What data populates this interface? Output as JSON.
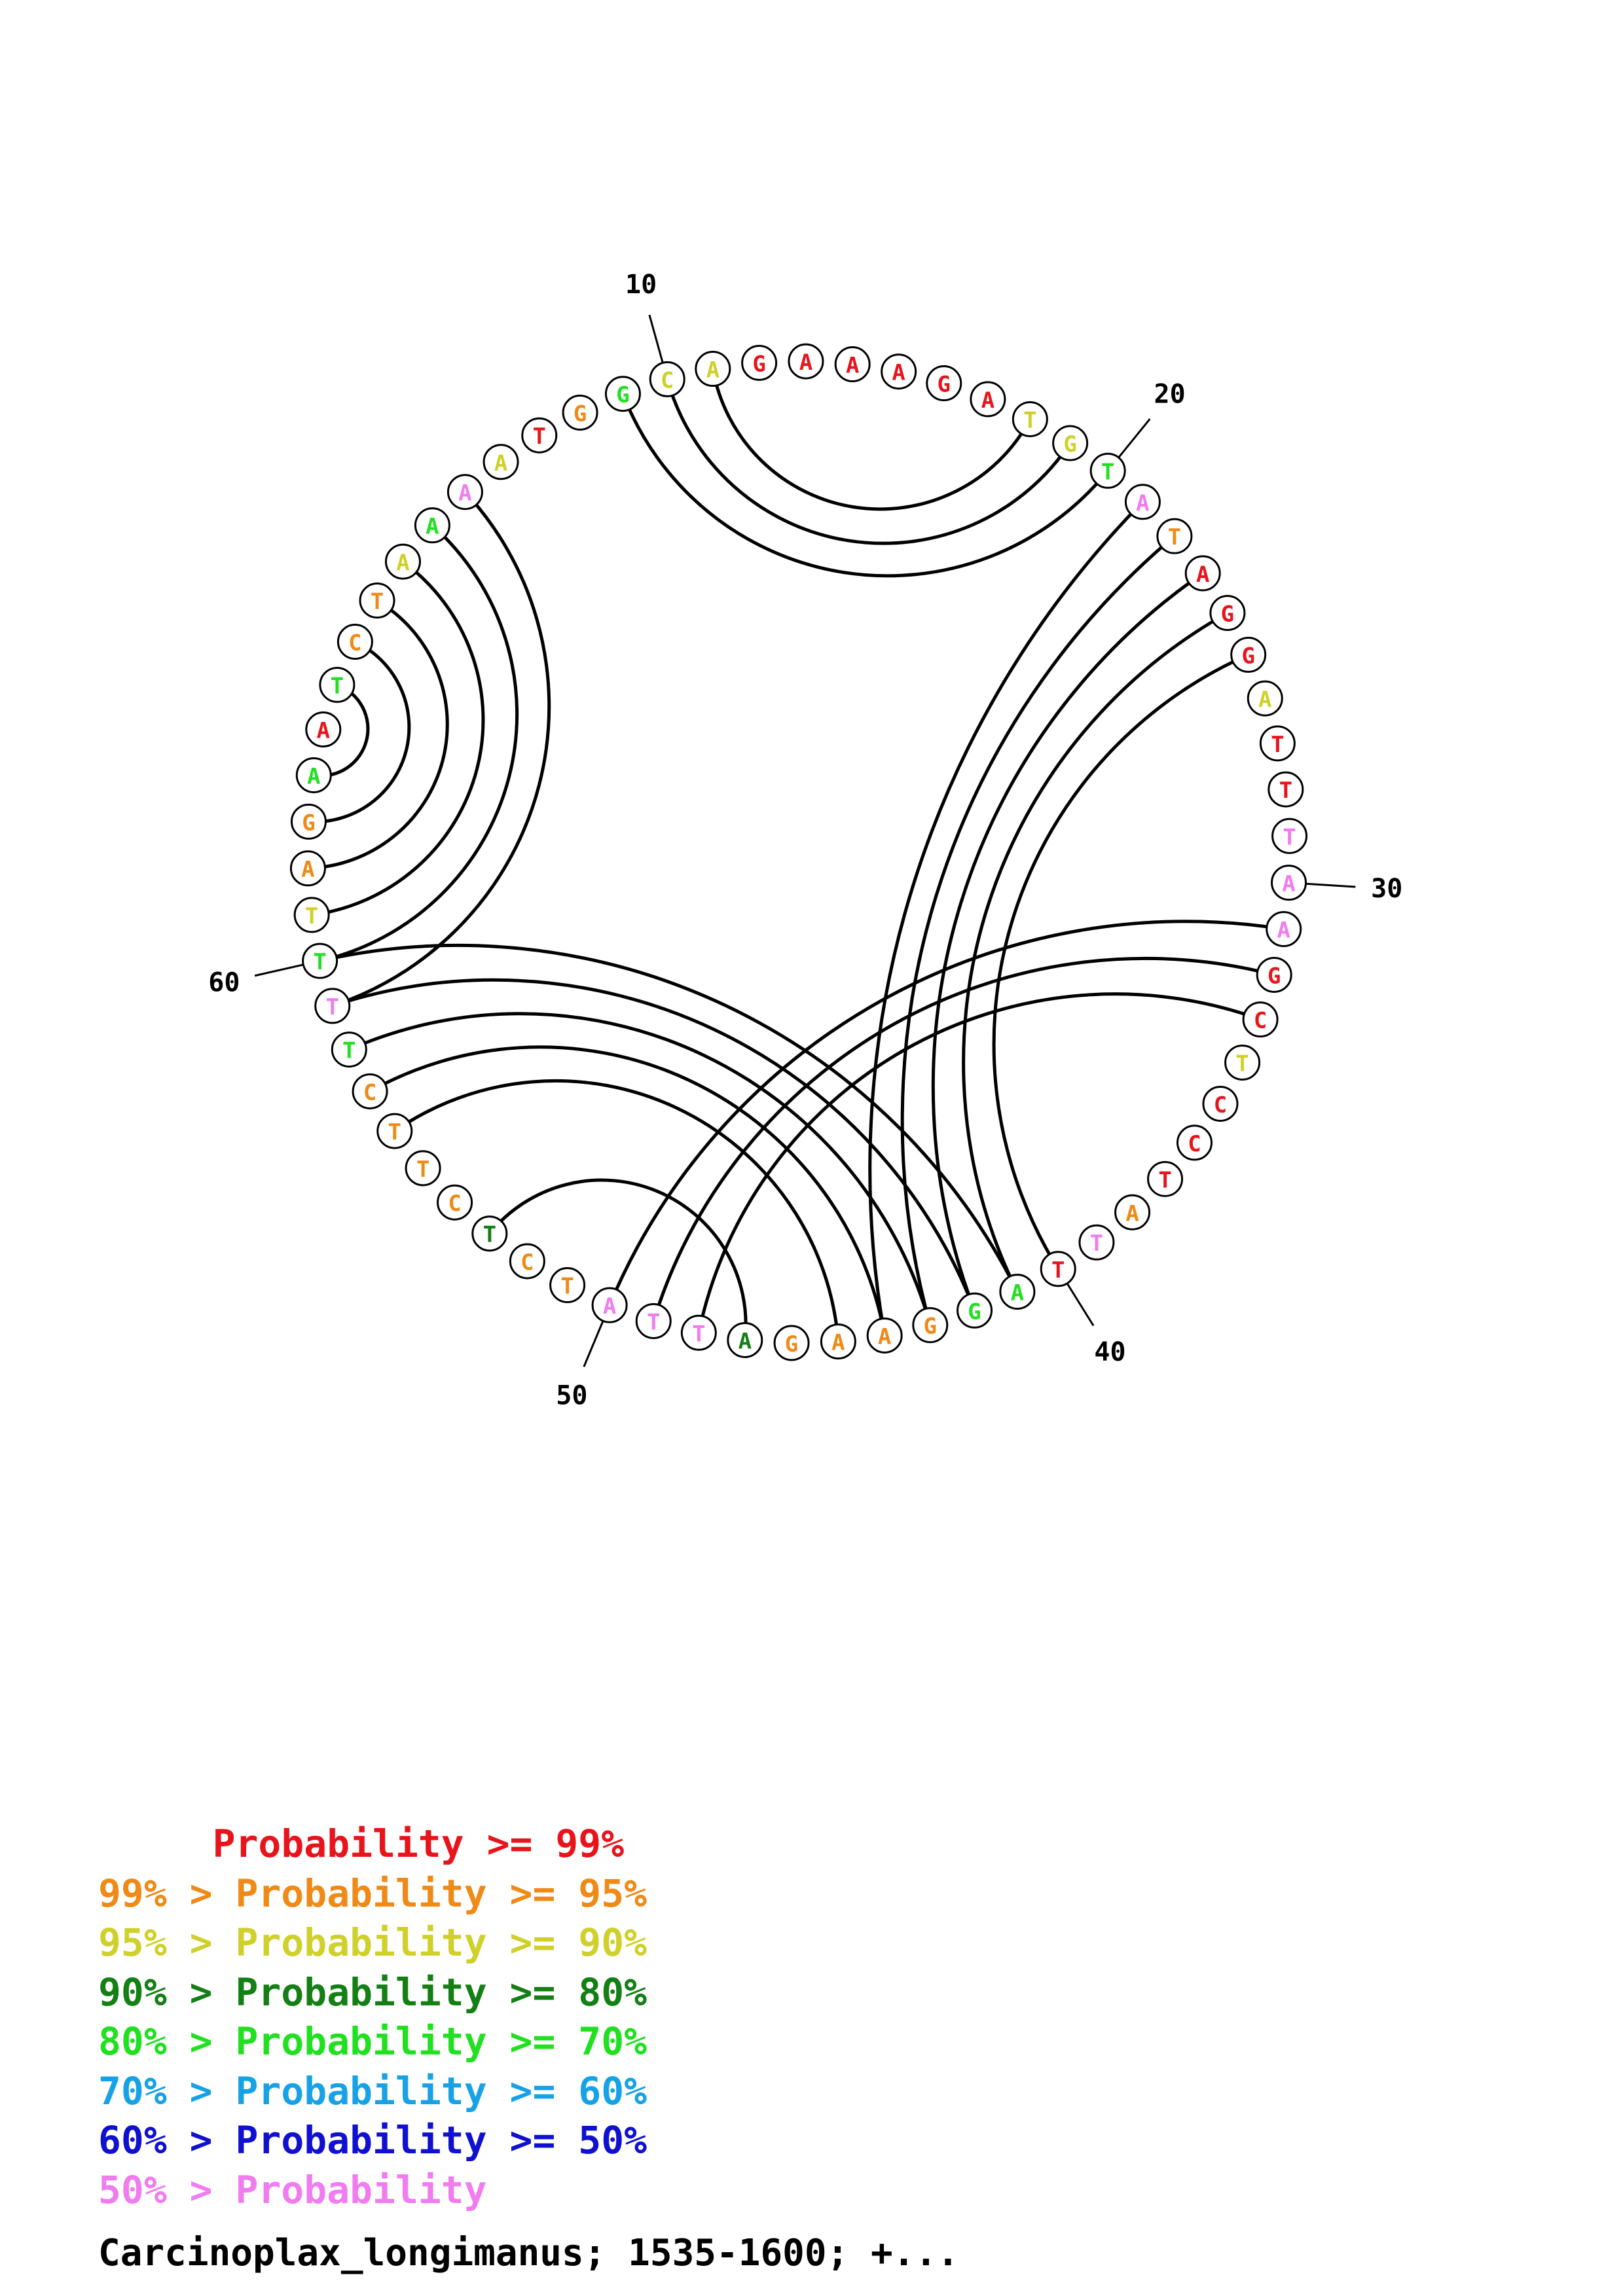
{
  "colors": {
    "red": "#e8141c",
    "orange": "#ef8a17",
    "yellow": "#cfd12a",
    "darkgreen": "#147f14",
    "green": "#20e020",
    "cyan": "#17a2e6",
    "blue": "#1010d0",
    "pink": "#f07cf0"
  },
  "sequence": [
    {
      "n": "A",
      "c": "pink"
    },
    {
      "n": "A",
      "c": "yellow"
    },
    {
      "n": "T",
      "c": "red"
    },
    {
      "n": "G",
      "c": "orange"
    },
    {
      "n": "G",
      "c": "green"
    },
    {
      "n": "C",
      "c": "yellow"
    },
    {
      "n": "A",
      "c": "yellow"
    },
    {
      "n": "G",
      "c": "red"
    },
    {
      "n": "A",
      "c": "red"
    },
    {
      "n": "A",
      "c": "red"
    },
    {
      "n": "A",
      "c": "red"
    },
    {
      "n": "G",
      "c": "red"
    },
    {
      "n": "A",
      "c": "red"
    },
    {
      "n": "T",
      "c": "yellow"
    },
    {
      "n": "G",
      "c": "yellow"
    },
    {
      "n": "T",
      "c": "green"
    },
    {
      "n": "A",
      "c": "pink"
    },
    {
      "n": "T",
      "c": "orange"
    },
    {
      "n": "A",
      "c": "red"
    },
    {
      "n": "G",
      "c": "red"
    },
    {
      "n": "G",
      "c": "red"
    },
    {
      "n": "A",
      "c": "yellow"
    },
    {
      "n": "T",
      "c": "red"
    },
    {
      "n": "T",
      "c": "red"
    },
    {
      "n": "T",
      "c": "pink"
    },
    {
      "n": "A",
      "c": "pink"
    },
    {
      "n": "A",
      "c": "pink"
    },
    {
      "n": "G",
      "c": "red"
    },
    {
      "n": "C",
      "c": "red"
    },
    {
      "n": "T",
      "c": "yellow"
    },
    {
      "n": "C",
      "c": "red"
    },
    {
      "n": "C",
      "c": "red"
    },
    {
      "n": "T",
      "c": "red"
    },
    {
      "n": "A",
      "c": "orange"
    },
    {
      "n": "T",
      "c": "pink"
    },
    {
      "n": "T",
      "c": "red"
    },
    {
      "n": "A",
      "c": "green"
    },
    {
      "n": "G",
      "c": "green"
    },
    {
      "n": "G",
      "c": "orange"
    },
    {
      "n": "A",
      "c": "orange"
    },
    {
      "n": "A",
      "c": "orange"
    },
    {
      "n": "G",
      "c": "orange"
    },
    {
      "n": "A",
      "c": "darkgreen"
    },
    {
      "n": "T",
      "c": "pink"
    },
    {
      "n": "T",
      "c": "pink"
    },
    {
      "n": "A",
      "c": "pink"
    },
    {
      "n": "T",
      "c": "orange"
    },
    {
      "n": "C",
      "c": "orange"
    },
    {
      "n": "T",
      "c": "darkgreen"
    },
    {
      "n": "C",
      "c": "orange"
    },
    {
      "n": "T",
      "c": "orange"
    },
    {
      "n": "T",
      "c": "orange"
    },
    {
      "n": "C",
      "c": "orange"
    },
    {
      "n": "T",
      "c": "green"
    },
    {
      "n": "T",
      "c": "pink"
    },
    {
      "n": "T",
      "c": "green"
    },
    {
      "n": "T",
      "c": "yellow"
    },
    {
      "n": "A",
      "c": "orange"
    },
    {
      "n": "G",
      "c": "orange"
    },
    {
      "n": "A",
      "c": "green"
    },
    {
      "n": "A",
      "c": "red"
    },
    {
      "n": "T",
      "c": "green"
    },
    {
      "n": "C",
      "c": "orange"
    },
    {
      "n": "T",
      "c": "orange"
    },
    {
      "n": "A",
      "c": "yellow"
    },
    {
      "n": "A",
      "c": "green"
    }
  ],
  "pairs": [
    [
      5,
      16
    ],
    [
      6,
      15
    ],
    [
      7,
      14
    ],
    [
      17,
      40
    ],
    [
      18,
      39
    ],
    [
      19,
      38
    ],
    [
      20,
      37
    ],
    [
      21,
      36
    ],
    [
      27,
      46
    ],
    [
      28,
      45
    ],
    [
      29,
      44
    ],
    [
      37,
      56
    ],
    [
      38,
      55
    ],
    [
      39,
      54
    ],
    [
      40,
      53
    ],
    [
      41,
      52
    ],
    [
      43,
      49
    ],
    [
      55,
      1
    ],
    [
      56,
      66
    ],
    [
      57,
      65
    ],
    [
      58,
      64
    ],
    [
      59,
      63
    ],
    [
      60,
      62
    ]
  ],
  "tick_marks": [
    {
      "index": 5,
      "label": "10"
    },
    {
      "index": 15,
      "label": "20"
    },
    {
      "index": 25,
      "label": "30"
    },
    {
      "index": 35,
      "label": "40"
    },
    {
      "index": 45,
      "label": "50"
    },
    {
      "index": 55,
      "label": "60"
    }
  ],
  "legend": [
    {
      "text": "     Probability >= 99%",
      "color": "red"
    },
    {
      "text": "99% > Probability >= 95%",
      "color": "orange"
    },
    {
      "text": "95% > Probability >= 90%",
      "color": "yellow"
    },
    {
      "text": "90% > Probability >= 80%",
      "color": "darkgreen"
    },
    {
      "text": "80% > Probability >= 70%",
      "color": "green"
    },
    {
      "text": "70% > Probability >= 60%",
      "color": "cyan"
    },
    {
      "text": "60% > Probability >= 50%",
      "color": "blue"
    },
    {
      "text": "50% > Probability",
      "color": "pink"
    }
  ],
  "caption": "Carcinoplax_longimanus; 1535-1600; +..."
}
